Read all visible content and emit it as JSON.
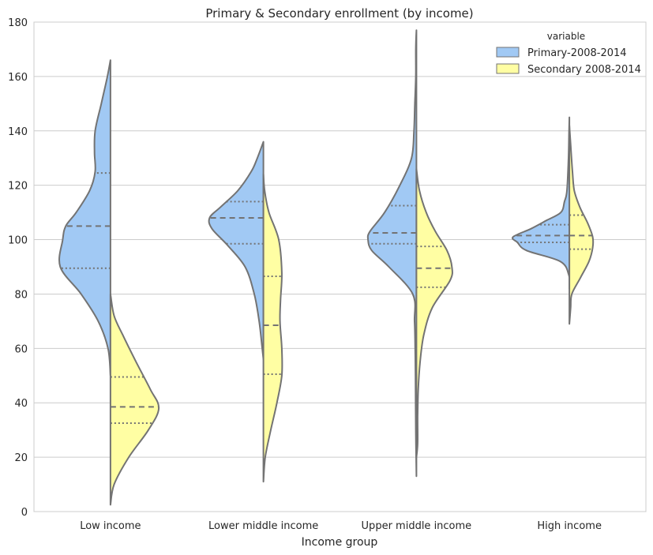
{
  "chart_data": {
    "type": "violin",
    "title": "Primary & Secondary enrollment (by income)",
    "xlabel": "Income group",
    "ylabel": "",
    "ylim": [
      0,
      180
    ],
    "yticks": [
      0,
      20,
      40,
      60,
      80,
      100,
      120,
      140,
      160,
      180
    ],
    "grid": true,
    "legend": {
      "title": "variable",
      "position": "top-right"
    },
    "categories": [
      "Low income",
      "Lower middle income",
      "Upper middle income",
      "High income"
    ],
    "series": [
      {
        "name": "Primary-2008-2014",
        "color": "#a1c9f4",
        "side": "left",
        "groups": [
          {
            "q1": 89.5,
            "median": 105,
            "q3": 124.5,
            "profile": [
              [
                50,
                0
              ],
              [
                60,
                0.04
              ],
              [
                70,
                0.2
              ],
              [
                80,
                0.48
              ],
              [
                90,
                0.82
              ],
              [
                100,
                0.78
              ],
              [
                105,
                0.73
              ],
              [
                110,
                0.56
              ],
              [
                118,
                0.34
              ],
              [
                125,
                0.25
              ],
              [
                132,
                0.26
              ],
              [
                140,
                0.25
              ],
              [
                150,
                0.15
              ],
              [
                160,
                0.05
              ],
              [
                166,
                0
              ]
            ]
          },
          {
            "q1": 98.5,
            "median": 108,
            "q3": 114,
            "min": 56,
            "max": 136,
            "profile": [
              [
                56,
                0
              ],
              [
                60,
                0.02
              ],
              [
                70,
                0.07
              ],
              [
                80,
                0.15
              ],
              [
                90,
                0.3
              ],
              [
                98,
                0.59
              ],
              [
                104,
                0.84
              ],
              [
                108,
                0.88
              ],
              [
                112,
                0.7
              ],
              [
                118,
                0.42
              ],
              [
                125,
                0.2
              ],
              [
                130,
                0.1
              ],
              [
                136,
                0
              ]
            ]
          },
          {
            "q1": 98.5,
            "median": 102.5,
            "q3": 112.5,
            "profile": [
              [
                13,
                0
              ],
              [
                30,
                0.01
              ],
              [
                50,
                0.015
              ],
              [
                60,
                0.02
              ],
              [
                70,
                0.03
              ],
              [
                80,
                0.06
              ],
              [
                90,
                0.45
              ],
              [
                96,
                0.73
              ],
              [
                100,
                0.79
              ],
              [
                103,
                0.76
              ],
              [
                110,
                0.52
              ],
              [
                120,
                0.27
              ],
              [
                130,
                0.08
              ],
              [
                140,
                0.04
              ],
              [
                150,
                0.025
              ],
              [
                160,
                0.01
              ],
              [
                170,
                0.01
              ],
              [
                177,
                0
              ]
            ]
          },
          {
            "q1": 99,
            "median": 101.5,
            "q3": 105.5,
            "profile": [
              [
                82,
                0
              ],
              [
                87,
                0.01
              ],
              [
                92,
                0.15
              ],
              [
                96,
                0.7
              ],
              [
                99,
                0.85
              ],
              [
                101,
                0.92
              ],
              [
                104,
                0.63
              ],
              [
                107,
                0.38
              ],
              [
                110,
                0.14
              ],
              [
                114,
                0.08
              ],
              [
                118,
                0.04
              ],
              [
                130,
                0.015
              ],
              [
                140,
                0.005
              ],
              [
                145,
                0
              ]
            ]
          }
        ]
      },
      {
        "name": "Secondary 2008-2014",
        "color": "#fffea3",
        "side": "right",
        "groups": [
          {
            "q1": 32.5,
            "median": 38.5,
            "q3": 49.5,
            "profile": [
              [
                2.5,
                0
              ],
              [
                10,
                0.06
              ],
              [
                20,
                0.3
              ],
              [
                30,
                0.62
              ],
              [
                38,
                0.79
              ],
              [
                45,
                0.65
              ],
              [
                55,
                0.42
              ],
              [
                65,
                0.2
              ],
              [
                72,
                0.06
              ],
              [
                80,
                0
              ]
            ]
          },
          {
            "q1": 50.5,
            "median": 68.5,
            "q3": 86.5,
            "profile": [
              [
                11,
                0
              ],
              [
                20,
                0.03
              ],
              [
                30,
                0.12
              ],
              [
                40,
                0.22
              ],
              [
                50,
                0.3
              ],
              [
                60,
                0.3
              ],
              [
                70,
                0.27
              ],
              [
                78,
                0.28
              ],
              [
                88,
                0.3
              ],
              [
                100,
                0.25
              ],
              [
                110,
                0.09
              ],
              [
                118,
                0.02
              ],
              [
                124,
                0
              ]
            ]
          },
          {
            "q1": 82.5,
            "median": 89.5,
            "q3": 97.5,
            "profile": [
              [
                20,
                0
              ],
              [
                25,
                0.02
              ],
              [
                35,
                0.02
              ],
              [
                45,
                0.03
              ],
              [
                55,
                0.06
              ],
              [
                65,
                0.12
              ],
              [
                75,
                0.26
              ],
              [
                85,
                0.55
              ],
              [
                90,
                0.58
              ],
              [
                96,
                0.5
              ],
              [
                103,
                0.31
              ],
              [
                110,
                0.16
              ],
              [
                118,
                0.05
              ],
              [
                126,
                0
              ]
            ]
          },
          {
            "q1": 96.5,
            "median": 101.5,
            "q3": 109,
            "profile": [
              [
                69,
                0
              ],
              [
                75,
                0.02
              ],
              [
                80,
                0.04
              ],
              [
                86,
                0.18
              ],
              [
                92,
                0.32
              ],
              [
                97,
                0.38
              ],
              [
                101,
                0.38
              ],
              [
                106,
                0.3
              ],
              [
                112,
                0.17
              ],
              [
                118,
                0.08
              ],
              [
                125,
                0.05
              ],
              [
                135,
                0.02
              ],
              [
                142,
                0
              ]
            ]
          }
        ]
      }
    ]
  }
}
